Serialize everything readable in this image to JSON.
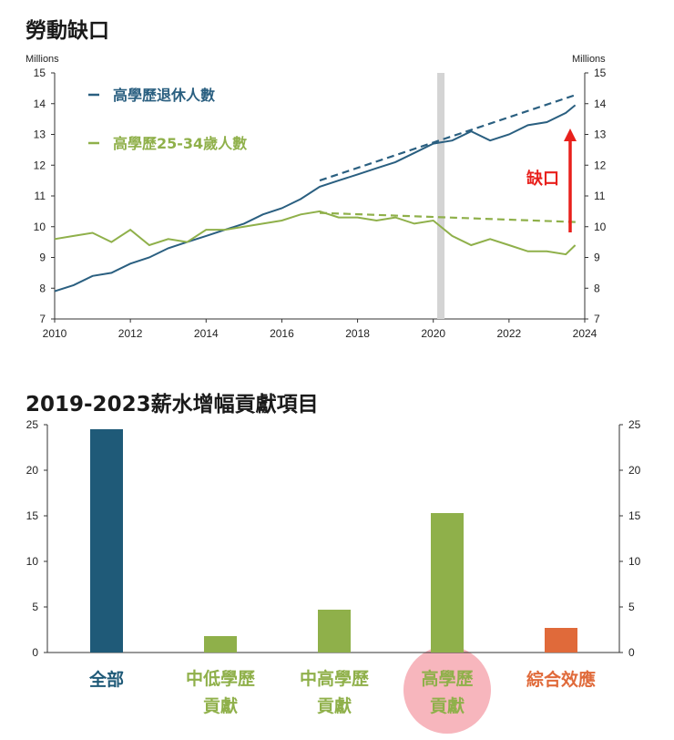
{
  "chart_data": [
    {
      "type": "line",
      "title": "勞動缺口",
      "ylabel_left": "Millions",
      "ylabel_right": "Millions",
      "xlim": [
        2010,
        2024
      ],
      "ylim": [
        7,
        15
      ],
      "x_ticks": [
        "2010",
        "2012",
        "2014",
        "2016",
        "2018",
        "2020",
        "2022",
        "2024"
      ],
      "y_ticks": [
        "7",
        "8",
        "9",
        "10",
        "11",
        "12",
        "13",
        "14",
        "15"
      ],
      "series": [
        {
          "name": "高學歷退休人數",
          "color": "#2a5f80",
          "x": [
            2010,
            2010.5,
            2011,
            2011.5,
            2012,
            2012.5,
            2013,
            2013.5,
            2014,
            2014.5,
            2015,
            2015.5,
            2016,
            2016.5,
            2017,
            2017.5,
            2018,
            2018.5,
            2019,
            2019.5,
            2020,
            2020.5,
            2021,
            2021.5,
            2022,
            2022.5,
            2023,
            2023.5,
            2023.75
          ],
          "values": [
            7.9,
            8.1,
            8.4,
            8.5,
            8.8,
            9.0,
            9.3,
            9.5,
            9.7,
            9.9,
            10.1,
            10.4,
            10.6,
            10.9,
            11.3,
            11.5,
            11.7,
            11.9,
            12.1,
            12.4,
            12.7,
            12.8,
            13.1,
            12.8,
            13.0,
            13.3,
            13.4,
            13.7,
            13.95
          ]
        },
        {
          "name": "高學歷25-34歲人數",
          "color": "#8fb04a",
          "x": [
            2010,
            2010.5,
            2011,
            2011.5,
            2012,
            2012.5,
            2013,
            2013.5,
            2014,
            2014.5,
            2015,
            2015.5,
            2016,
            2016.5,
            2017,
            2017.5,
            2018,
            2018.5,
            2019,
            2019.5,
            2020,
            2020.5,
            2021,
            2021.5,
            2022,
            2022.5,
            2023,
            2023.5,
            2023.75
          ],
          "values": [
            9.6,
            9.7,
            9.8,
            9.5,
            9.9,
            9.4,
            9.6,
            9.5,
            9.9,
            9.9,
            10.0,
            10.1,
            10.2,
            10.4,
            10.5,
            10.3,
            10.3,
            10.2,
            10.3,
            10.1,
            10.2,
            9.7,
            9.4,
            9.6,
            9.4,
            9.2,
            9.2,
            9.1,
            9.4
          ]
        },
        {
          "name": "高學歷退休人數趨勢",
          "style": "dashed",
          "color": "#2a5f80",
          "x": [
            2017,
            2023.8
          ],
          "values": [
            11.5,
            14.3
          ]
        },
        {
          "name": "高學歷25-34歲人數趨勢",
          "style": "dashed",
          "color": "#8fb04a",
          "x": [
            2017,
            2023.8
          ],
          "values": [
            10.45,
            10.15
          ]
        }
      ],
      "shaded_band_x": 2020.2,
      "annotation": {
        "text": "缺口",
        "color": "#e8201c",
        "x": 2023.6,
        "from": 9.8,
        "to": 13.0
      }
    },
    {
      "type": "bar",
      "title": "2019-2023薪水增幅貢獻項目",
      "ylim": [
        0,
        25
      ],
      "y_ticks": [
        "0",
        "5",
        "10",
        "15",
        "20",
        "25"
      ],
      "categories": [
        "全部",
        "中低學歷貢獻",
        "中高學歷貢獻",
        "高學歷貢獻",
        "綜合效應"
      ],
      "category_lines": [
        [
          "全部"
        ],
        [
          "中低學歷",
          "貢獻"
        ],
        [
          "中高學歷",
          "貢獻"
        ],
        [
          "高學歷",
          "貢獻"
        ],
        [
          "綜合效應"
        ]
      ],
      "values": [
        24.5,
        1.8,
        4.7,
        15.3,
        2.7
      ],
      "colors": [
        "#1f5a78",
        "#8fb04a",
        "#8fb04a",
        "#8fb04a",
        "#e06a3a"
      ],
      "label_colors": [
        "#1f5a78",
        "#8fb04a",
        "#8fb04a",
        "#8fb04a",
        "#e06a3a"
      ],
      "highlight_index": 3,
      "highlight_color": "#f7b6bd"
    }
  ]
}
